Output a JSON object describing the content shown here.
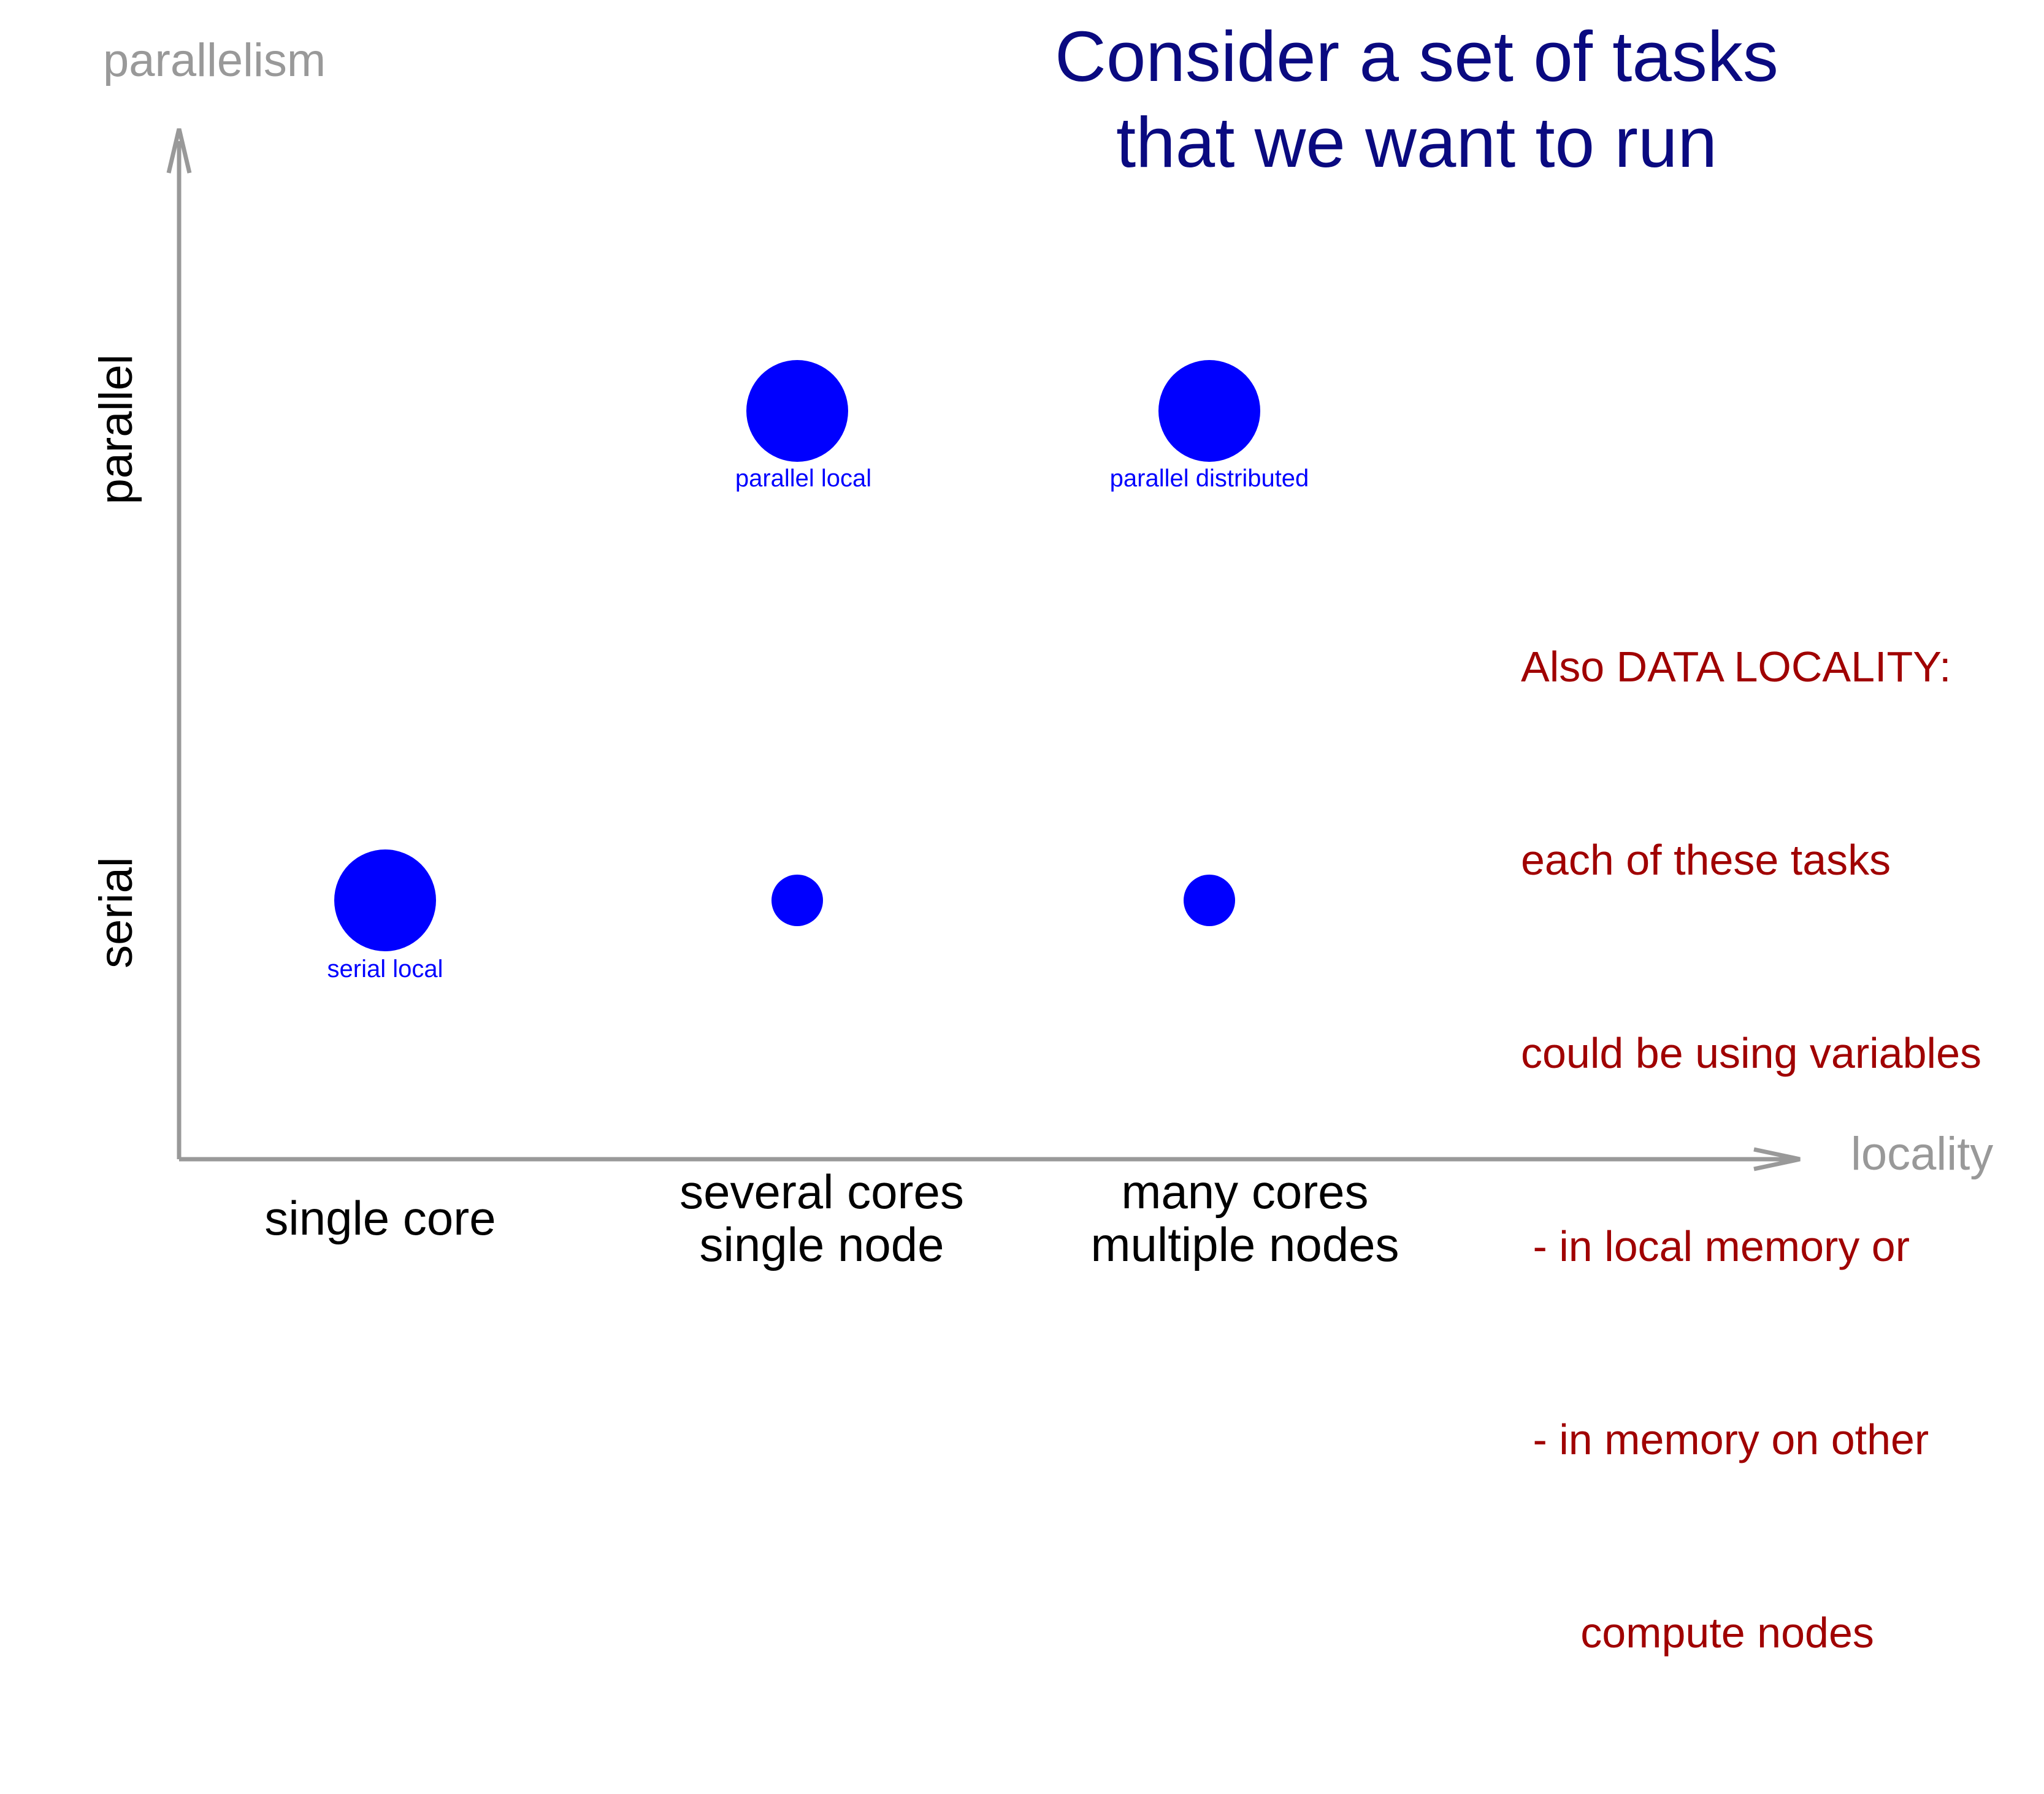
{
  "title": {
    "line1": "Consider a set of tasks",
    "line2": "that we want to run"
  },
  "axes": {
    "y_name": "parallelism",
    "x_name": "locality",
    "y_categories": [
      "parallel",
      "serial"
    ],
    "x_categories": [
      {
        "line1": "single core",
        "line2": ""
      },
      {
        "line1": "several cores",
        "line2": "single node"
      },
      {
        "line1": "many cores",
        "line2": "multiple nodes"
      }
    ]
  },
  "points": [
    {
      "label": "serial local",
      "locality": "single core",
      "parallelism": "serial",
      "size": "large"
    },
    {
      "label": "",
      "locality": "several cores single node",
      "parallelism": "serial",
      "size": "small"
    },
    {
      "label": "",
      "locality": "many cores multiple nodes",
      "parallelism": "serial",
      "size": "small"
    },
    {
      "label": "parallel local",
      "locality": "several cores single node",
      "parallelism": "parallel",
      "size": "large"
    },
    {
      "label": "parallel distributed",
      "locality": "many cores multiple nodes",
      "parallelism": "parallel",
      "size": "large"
    }
  ],
  "note": {
    "lines": [
      "Also DATA LOCALITY:",
      "each of these tasks",
      "could be using variables",
      " - in local memory or",
      " - in memory on other",
      "     compute nodes"
    ]
  },
  "colors": {
    "title": "#0a0a80",
    "axis": "#999999",
    "point": "#0000ff",
    "note": "#a00000"
  }
}
